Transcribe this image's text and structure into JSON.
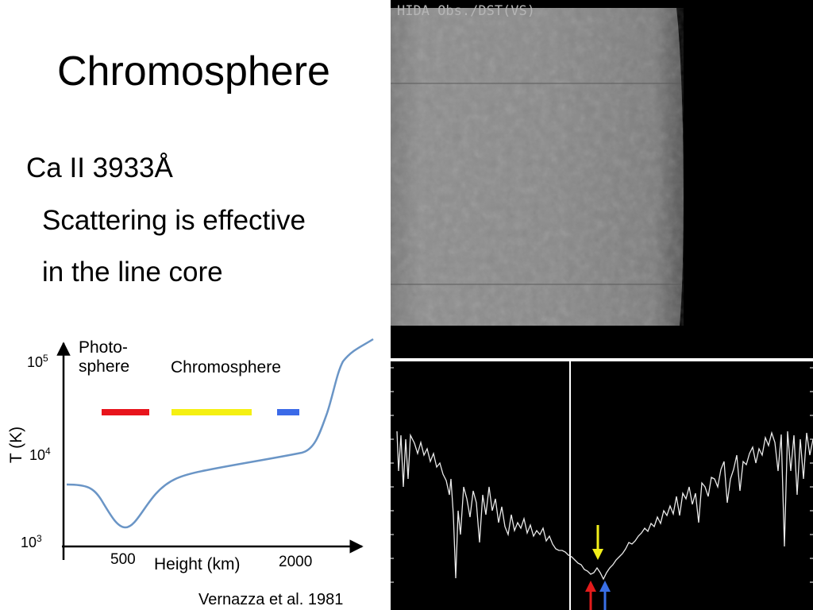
{
  "slide": {
    "title": "Chromosphere",
    "bullets": [
      "Ca II 3933Å",
      "Scattering is effective",
      "in the line core"
    ]
  },
  "graph": {
    "ylabel": "T (K)",
    "xlabel": "Height (km)",
    "ytick_base": "10",
    "yticks": [
      {
        "exp": "5"
      },
      {
        "exp": "4"
      },
      {
        "exp": "3"
      }
    ],
    "xticks": [
      "500",
      "2000"
    ],
    "region_photosphere_line1": "Photo-",
    "region_photosphere_line2": "sphere",
    "region_chromosphere": "Chromosphere",
    "bar_colors": {
      "red": "#e8141c",
      "yellow": "#f5f012",
      "blue": "#3b6ae8"
    },
    "curve_color": "#6a95c6",
    "citation": "Vernazza et al. 1981"
  },
  "observation": {
    "label": "HIDA Obs./DST(VS)"
  },
  "spectrum": {
    "arrow_colors": {
      "yellow": "#f2ef1a",
      "red": "#e31b1b",
      "blue": "#3a6fe6"
    }
  }
}
